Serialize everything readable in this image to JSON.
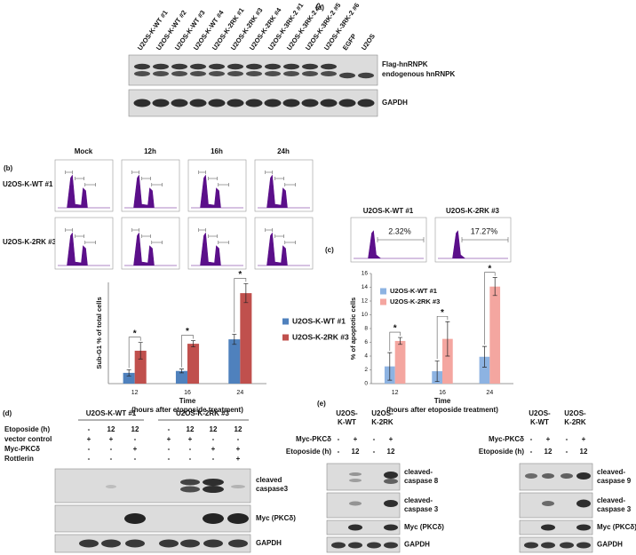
{
  "panel_a": {
    "label": "(a)",
    "lanes": [
      "U2OS-K-WT #1",
      "U2OS-K-WT #2",
      "U2OS-K-WT #3",
      "U2OS-K-WT #4",
      "U2OS-K-2RK #1",
      "U2OS-K-2RK #3",
      "U2OS-K-2RK #4",
      "U2OS-K-3RK-2 #1",
      "U2OS-K-3RK-2 #2",
      "U2OS-K-3RK-2 #5",
      "U2OS-K-3RK-2 #6",
      "EGFP",
      "U2OS"
    ],
    "blots": [
      [
        "Flag-hnRNPK",
        "endogenous hnRNPK"
      ],
      [
        "GAPDH"
      ]
    ]
  },
  "panel_b": {
    "label": "(b)",
    "time_points": [
      "Mock",
      "12h",
      "16h",
      "24h"
    ],
    "cell_lines": [
      "U2OS-K-WT #1",
      "U2OS-K-2RK #3"
    ],
    "chart_data": {
      "type": "bar",
      "y_label": "Sub-G1 % of total cells",
      "x_label": "Time",
      "x_sublabel": "(hours after etoposide treatment)",
      "categories": [
        "12",
        "16",
        "24"
      ],
      "series": [
        {
          "name": "U2OS-K-WT  #1",
          "color": "#4f81bd",
          "values": [
            1.7,
            2.0,
            7.0
          ],
          "errors": [
            0.5,
            0.3,
            0.8
          ]
        },
        {
          "name": "U2OS-K-2RK #3",
          "color": "#c0504d",
          "values": [
            5.2,
            6.3,
            14.3
          ],
          "errors": [
            1.3,
            0.5,
            1.5
          ]
        }
      ],
      "annotations": [
        "*",
        "*",
        "*"
      ],
      "ylim": [
        0,
        16
      ],
      "legend": "right"
    }
  },
  "panel_c": {
    "label": "(c)",
    "cell_lines": [
      "U2OS-K-WT #1",
      "U2OS-K-2RK #3"
    ],
    "percentages": [
      "2.32%",
      "17.27%"
    ],
    "chart_data": {
      "type": "bar",
      "y_label": "% of apoptotic cells",
      "x_label": "Time",
      "x_sublabel": "(hours after etoposide treatment)",
      "categories": [
        "12",
        "16",
        "24"
      ],
      "series": [
        {
          "name": "U2OS-K-WT  #1",
          "color": "#8db3e2",
          "values": [
            2.5,
            1.8,
            3.9
          ],
          "errors": [
            2.0,
            1.5,
            1.5
          ]
        },
        {
          "name": "U2OS-K-2RK #3",
          "color": "#f4a6a0",
          "values": [
            6.2,
            6.5,
            14.1
          ],
          "errors": [
            0.5,
            2.5,
            1.3
          ]
        }
      ],
      "annotations": [
        "*",
        "*",
        "*"
      ],
      "ylim": [
        0,
        16
      ],
      "yticks": [
        0,
        2,
        4,
        6,
        8,
        10,
        12,
        14,
        16
      ],
      "legend": "upper left"
    }
  },
  "panel_d": {
    "label": "(d)",
    "groups": [
      "U2OS-K-WT #1",
      "U2OS-K-2RK #3"
    ],
    "rows": [
      {
        "label": "Etoposide (h)",
        "values": [
          "-",
          "12",
          "12",
          "-",
          "12",
          "12",
          "12"
        ]
      },
      {
        "label": "vector control",
        "values": [
          "+",
          "+",
          "-",
          "+",
          "+",
          "-",
          "-"
        ]
      },
      {
        "label": "Myc-PKCδ",
        "values": [
          "-",
          "-",
          "+",
          "-",
          "-",
          "+",
          "+"
        ]
      },
      {
        "label": "Rottlerin",
        "values": [
          "-",
          "-",
          "-",
          "-",
          "-",
          "-",
          "+"
        ]
      }
    ],
    "blots": [
      [
        "cleaved",
        "caspase3"
      ],
      [
        "Myc (PKCδ)"
      ],
      [
        "GAPDH"
      ]
    ]
  },
  "panel_e": {
    "label": "(e)",
    "left": {
      "cell_lines": [
        [
          "U2OS-",
          "K-WT"
        ],
        [
          "U2OS-",
          "K-2RK"
        ]
      ],
      "rows": [
        {
          "label": "Myc-PKCδ",
          "values": [
            "-",
            "+",
            "-",
            "+"
          ]
        },
        {
          "label": "Etoposide (h)",
          "values": [
            "-",
            "12",
            "-",
            "12"
          ]
        }
      ],
      "blots": [
        [
          "cleaved-",
          "caspase 8"
        ],
        [
          "cleaved-",
          "caspase 3"
        ],
        [
          "Myc (PKCδ)"
        ],
        [
          "GAPDH"
        ]
      ]
    },
    "right": {
      "cell_lines": [
        [
          "U2OS-",
          "K-WT"
        ],
        [
          "U2OS-",
          "K-2RK"
        ]
      ],
      "rows": [
        {
          "label": "Myc-PKCδ",
          "values": [
            "-",
            "+",
            "-",
            "+"
          ]
        },
        {
          "label": "Etoposide (h)",
          "values": [
            "-",
            "12",
            "-",
            "12"
          ]
        }
      ],
      "blots": [
        [
          "cleaved-",
          "caspase 9"
        ],
        [
          "cleaved-",
          "caspase 3"
        ],
        [
          "Myc (PKCδ)"
        ],
        [
          "GAPDH"
        ]
      ]
    }
  }
}
